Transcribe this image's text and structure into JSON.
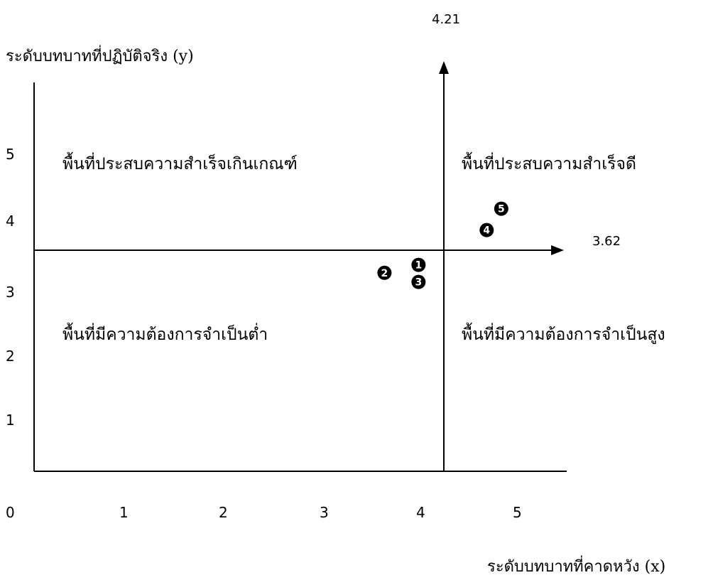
{
  "chart_data": {
    "type": "scatter",
    "ylabel": "ระดับบทบาทที่ปฏิบัติจริง (y)",
    "xlabel": "ระดับบทบาทที่คาดหวัง (x)",
    "x_ticks": [
      "0",
      "1",
      "2",
      "3",
      "4",
      "5"
    ],
    "y_ticks": [
      "1",
      "2",
      "3",
      "4",
      "5"
    ],
    "xlim": [
      0,
      5.5
    ],
    "ylim": [
      0,
      5.5
    ],
    "mean_x_label": "4.21",
    "mean_y_label": "3.62",
    "mean_x": 4.21,
    "mean_y": 3.62,
    "quadrants": {
      "top_left": "พื้นที่ประสบความสำเร็จเกินเกณฑ์",
      "top_right": "พื้นที่ประสบความสำเร็จดี",
      "bottom_left": "พื้นที่มีความต้องการจำเป็นต่ำ",
      "bottom_right": "พื้นที่มีความต้องการจำเป็นสูง"
    },
    "points": [
      {
        "label": "❶",
        "x": 3.95,
        "y": 3.38
      },
      {
        "label": "❷",
        "x": 3.6,
        "y": 3.25
      },
      {
        "label": "❸",
        "x": 3.95,
        "y": 3.1
      },
      {
        "label": "❹",
        "x": 4.65,
        "y": 3.95
      },
      {
        "label": "❺",
        "x": 4.8,
        "y": 4.3
      }
    ]
  }
}
